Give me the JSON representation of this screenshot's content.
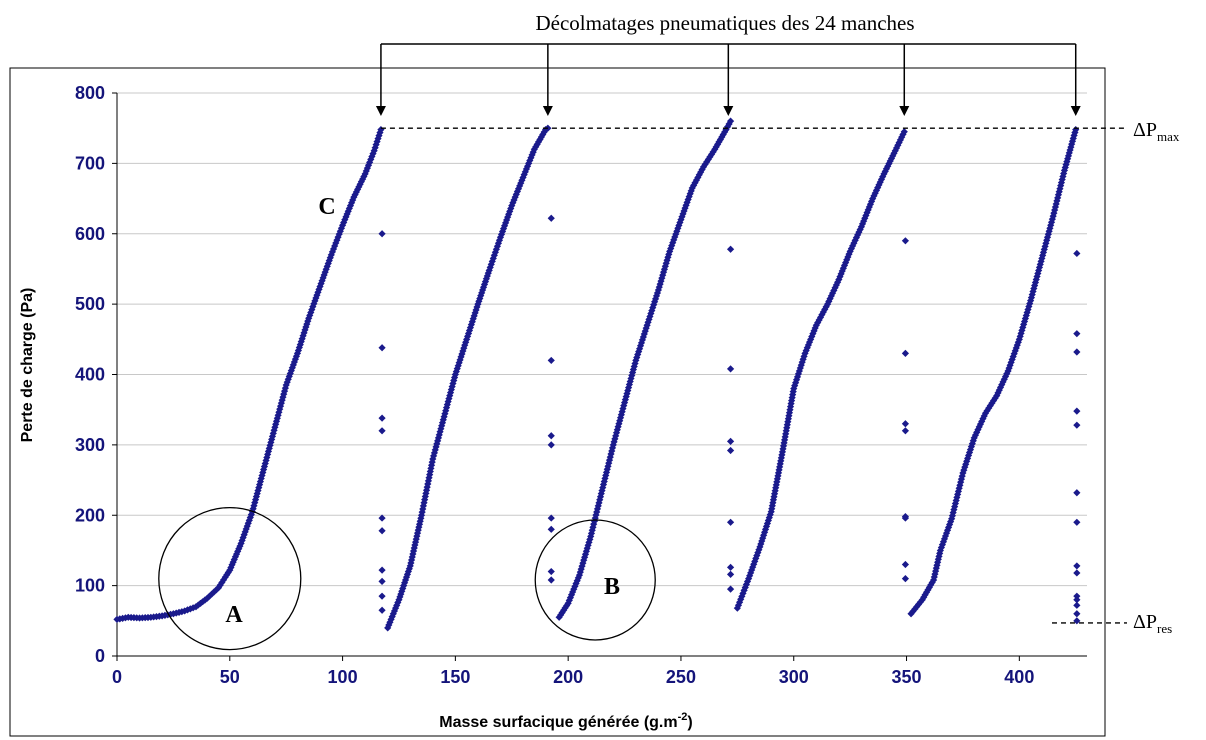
{
  "chart_data": {
    "type": "scatter",
    "title": "Décolmatages pneumatiques des 24 manches",
    "xlabel": "Masse surfacique générée (g.m",
    "xlabel_sup": "-2",
    "xlabel_end": ")",
    "ylabel": "Perte de charge (Pa)",
    "xlim": [
      0,
      430
    ],
    "ylim": [
      0,
      800
    ],
    "xticks": [
      0,
      50,
      100,
      150,
      200,
      250,
      300,
      350,
      400
    ],
    "yticks": [
      0,
      100,
      200,
      300,
      400,
      500,
      600,
      700,
      800
    ],
    "grid": "horizontal",
    "marker_color": "#1a1a8c",
    "annotations": [
      {
        "label": "A",
        "x": 50,
        "y": 110,
        "circle": true
      },
      {
        "label": "B",
        "x": 212,
        "y": 108,
        "circle": true
      },
      {
        "label": "C",
        "x": 93,
        "y": 640,
        "circle": false
      }
    ],
    "level_labels": {
      "max_main": "ΔP",
      "max_sub": "max",
      "max_value": 750,
      "res_main": "ΔP",
      "res_sub": "res",
      "res_value": 47
    },
    "cleaning_events_x": [
      117,
      191,
      271,
      349,
      425
    ],
    "series": [
      {
        "segments": [
          {
            "x": [
              0,
              5,
              10,
              15,
              20,
              25,
              30,
              35,
              40,
              45,
              48,
              50,
              55,
              60,
              65,
              70,
              75,
              80,
              85,
              90,
              95,
              100,
              105,
              110,
              114,
              117
            ],
            "y": [
              52,
              55,
              54,
              55,
              57,
              60,
              64,
              70,
              82,
              97,
              112,
              122,
              160,
              205,
              265,
              325,
              385,
              430,
              480,
              525,
              570,
              612,
              652,
              685,
              718,
              748
            ]
          },
          {
            "x": [
              120,
              125,
              130,
              135,
              140,
              145,
              150,
              155,
              160,
              165,
              170,
              175,
              180,
              185,
              190,
              191
            ],
            "y": [
              40,
              80,
              128,
              200,
              280,
              340,
              400,
              450,
              500,
              548,
              595,
              640,
              680,
              720,
              748,
              750
            ]
          },
          {
            "x": [
              196,
              200,
              205,
              210,
              215,
              220,
              225,
              230,
              235,
              240,
              245,
              250,
              255,
              260,
              265,
              270,
              272
            ],
            "y": [
              55,
              75,
              115,
              170,
              235,
              300,
              360,
              420,
              470,
              520,
              575,
              620,
              665,
              695,
              720,
              748,
              760
            ]
          },
          {
            "x": [
              275,
              280,
              285,
              290,
              295,
              300,
              305,
              310,
              315,
              320,
              325,
              330,
              335,
              340,
              345,
              349
            ],
            "y": [
              68,
              110,
              155,
              205,
              290,
              380,
              430,
              470,
              500,
              535,
              575,
              610,
              650,
              685,
              718,
              745
            ]
          },
          {
            "x": [
              352,
              357,
              362,
              365,
              370,
              375,
              380,
              385,
              390,
              395,
              400,
              405,
              410,
              415,
              420,
              425
            ],
            "y": [
              60,
              80,
              108,
              150,
              195,
              260,
              310,
              345,
              370,
              405,
              450,
              505,
              565,
              625,
              690,
              748
            ]
          }
        ],
        "drops": [
          {
            "x": 117.5,
            "y": [
              600,
              438,
              338,
              320,
              196,
              178,
              122,
              106,
              85,
              65
            ]
          },
          {
            "x": 192.5,
            "y": [
              622,
              420,
              313,
              300,
              196,
              180,
              120,
              108
            ]
          },
          {
            "x": 272,
            "y": [
              578,
              408,
              305,
              292,
              190,
              126,
              116,
              95
            ]
          },
          {
            "x": 349.5,
            "y": [
              590,
              430,
              330,
              320,
              198,
              196,
              130,
              110
            ]
          },
          {
            "x": 425.5,
            "y": [
              572,
              458,
              432,
              348,
              328,
              232,
              190,
              128,
              118,
              85,
              80,
              72,
              60,
              50
            ]
          }
        ]
      }
    ]
  }
}
